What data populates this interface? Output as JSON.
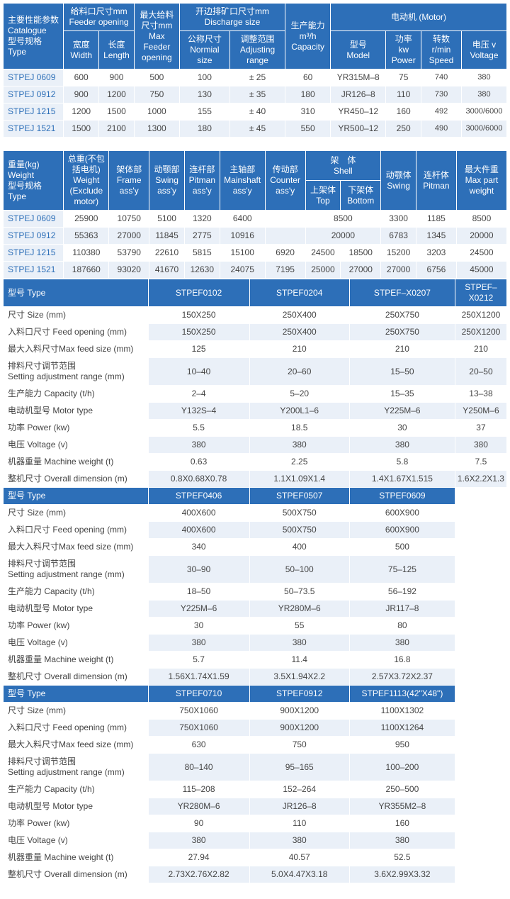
{
  "colors": {
    "header_bg": "#2d6fb8",
    "header_fg": "#ffffff",
    "row_alt": "#eaf0f8",
    "border": "#ffffff"
  },
  "t1": {
    "h": {
      "catalogue": "主要性能参数\nCatalogue\n型号规格\nType",
      "feeder_opening": "给料口尺寸mm\nFeeder opening",
      "width": "宽度\nWidth",
      "length": "长度\nLength",
      "max_feeder": "最大给料\n尺寸mm\nMax\nFeeder\nopening",
      "discharge": "开边排矿口尺寸mm\nDischarge size",
      "nominal": "公称尺寸\nNormial size",
      "adjust": "调整范围\nAdjusting range",
      "capacity": "生产能力\nm³/h\nCapacity",
      "motor": "电动机 (Motor)",
      "model": "型号\nModel",
      "power": "功率\nkw\nPower",
      "speed": "转数\nr/min\nSpeed",
      "voltage": "电压 v\nVoltage"
    },
    "rows": [
      [
        "STPEJ 0609",
        "600",
        "900",
        "500",
        "100",
        "± 25",
        "60",
        "YR315M–8",
        "75",
        "740",
        "380"
      ],
      [
        "STPEJ 0912",
        "900",
        "1200",
        "750",
        "130",
        "± 35",
        "180",
        "JR126–8",
        "110",
        "730",
        "380"
      ],
      [
        "STPEJ 1215",
        "1200",
        "1500",
        "1000",
        "155",
        "± 40",
        "310",
        "YR450–12",
        "160",
        "492",
        "3000/6000"
      ],
      [
        "STPEJ 1521",
        "1500",
        "2100",
        "1300",
        "180",
        "± 45",
        "550",
        "YR500–12",
        "250",
        "490",
        "3000/6000"
      ]
    ]
  },
  "t2": {
    "h": {
      "weight": "重量(kg)\nWeight\n型号规格\nType",
      "total": "总重(不包\n括电机)\nWeight\n(Exclude\nmotor)",
      "frame": "架体部\nFrame\nass'y",
      "swing": "动颚部\nSwing\nass'y",
      "pitman": "连杆部\nPitman\nass'y",
      "mainshaft": "主轴部\nMainshaft\nass'y",
      "counter": "传动部\nCounter\nass'y",
      "shell": "架　体\nShell",
      "top": "上架体\nTop",
      "bottom": "下架体\nBottom",
      "swing2": "动颚体\nSwing",
      "pitman2": "连杆体\nPitman",
      "maxpart": "最大件重\nMax part\nweight"
    },
    "rows": [
      {
        "c": [
          "STPEJ 0609",
          "25900",
          "10750",
          "5100",
          "1320",
          "6400",
          "",
          "8500",
          "",
          "3300",
          "1185",
          "8500"
        ],
        "merge": 7
      },
      {
        "c": [
          "STPEJ 0912",
          "55363",
          "27000",
          "11845",
          "2775",
          "10916",
          "",
          "20000",
          "",
          "6783",
          "1345",
          "20000"
        ],
        "merge": 7
      },
      {
        "c": [
          "STPEJ 1215",
          "110380",
          "53790",
          "22610",
          "5815",
          "15100",
          "6920",
          "24500",
          "18500",
          "15200",
          "3203",
          "24500"
        ]
      },
      {
        "c": [
          "STPEJ 1521",
          "187660",
          "93020",
          "41670",
          "12630",
          "24075",
          "7195",
          "25000",
          "27000",
          "27000",
          "6756",
          "45000"
        ]
      }
    ]
  },
  "t3": {
    "labels": {
      "type": "型号 Type",
      "size": "尺寸 Size (mm)",
      "feed": "入料口尺寸 Feed opening (mm)",
      "maxfeed": "最大入料尺寸Max feed size (mm)",
      "setting": "排料尺寸调节范围\nSetting adjustment range (mm)",
      "capacity": "生产能力 Capacity (t/h)",
      "motortype": "电动机型号 Motor type",
      "power": "功率 Power (kw)",
      "voltage": "电压 Voltage (v)",
      "weight": "机器重量 Machine weight (t)",
      "overall": "整机尺寸 Overall dimension (m)"
    },
    "blocks": [
      {
        "cols": [
          "STPEF0102",
          "STPEF0204",
          "STPEF–X0207",
          "STPEF–X0212"
        ],
        "rows": {
          "size": [
            "150X250",
            "250X400",
            "250X750",
            "250X1200"
          ],
          "feed": [
            "150X250",
            "250X400",
            "250X750",
            "250X1200"
          ],
          "maxfeed": [
            "125",
            "210",
            "210",
            "210"
          ],
          "setting": [
            "10–40",
            "20–60",
            "15–50",
            "20–50"
          ],
          "capacity": [
            "2–4",
            "5–20",
            "15–35",
            "13–38"
          ],
          "motortype": [
            "Y132S–4",
            "Y200L1–6",
            "Y225M–6",
            "Y250M–6"
          ],
          "power": [
            "5.5",
            "18.5",
            "30",
            "37"
          ],
          "voltage": [
            "380",
            "380",
            "380",
            "380"
          ],
          "weight": [
            "0.63",
            "2.25",
            "5.8",
            "7.5"
          ],
          "overall": [
            "0.8X0.68X0.78",
            "1.1X1.09X1.4",
            "1.4X1.67X1.515",
            "1.6X2.2X1.3"
          ]
        }
      },
      {
        "cols": [
          "STPEF0406",
          "STPEF0507",
          "STPEF0609"
        ],
        "rows": {
          "size": [
            "400X600",
            "500X750",
            "600X900"
          ],
          "feed": [
            "400X600",
            "500X750",
            "600X900"
          ],
          "maxfeed": [
            "340",
            "400",
            "500"
          ],
          "setting": [
            "30–90",
            "50–100",
            "75–125"
          ],
          "capacity": [
            "18–50",
            "50–73.5",
            "56–192"
          ],
          "motortype": [
            "Y225M–6",
            "YR280M–6",
            "JR117–8"
          ],
          "power": [
            "30",
            "55",
            "80"
          ],
          "voltage": [
            "380",
            "380",
            "380"
          ],
          "weight": [
            "5.7",
            "11.4",
            "16.8"
          ],
          "overall": [
            "1.56X1.74X1.59",
            "3.5X1.94X2.2",
            "2.57X3.72X2.37"
          ]
        }
      },
      {
        "cols": [
          "STPEF0710",
          "STPEF0912",
          "STPEF1113(42\"X48\")"
        ],
        "rows": {
          "size": [
            "750X1060",
            "900X1200",
            "1100X1302"
          ],
          "feed": [
            "750X1060",
            "900X1200",
            "1100X1264"
          ],
          "maxfeed": [
            "630",
            "750",
            "950"
          ],
          "setting": [
            "80–140",
            "95–165",
            "100–200"
          ],
          "capacity": [
            "115–208",
            "152–264",
            "250–500"
          ],
          "motortype": [
            "YR280M–6",
            "JR126–8",
            "YR355M2–8"
          ],
          "power": [
            "90",
            "110",
            "160"
          ],
          "voltage": [
            "380",
            "380",
            "380"
          ],
          "weight": [
            "27.94",
            "40.57",
            "52.5"
          ],
          "overall": [
            "2.73X2.76X2.82",
            "5.0X4.47X3.18",
            "3.6X2.99X3.32"
          ]
        }
      }
    ]
  }
}
